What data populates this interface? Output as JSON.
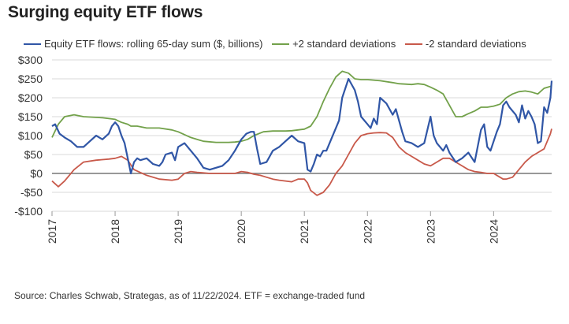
{
  "header": {
    "title": "Surging equity ETF flows"
  },
  "footer": {
    "source": "Source: Charles Schwab, Strategas, as of 11/22/2024. ETF = exchange-traded fund"
  },
  "colors": {
    "flows": "#3056a6",
    "upper": "#72a14a",
    "lower": "#c8594a",
    "zero": "#777777",
    "grid": "#d9d9d9"
  },
  "chart_data": {
    "type": "line",
    "title": "Surging equity ETF flows",
    "xlabel": "",
    "ylabel": "",
    "xlim": [
      2017.0,
      2024.92
    ],
    "ylim": [
      -100,
      300
    ],
    "y_ticks": [
      300,
      250,
      200,
      150,
      100,
      50,
      0,
      -50,
      -100
    ],
    "y_tick_labels": [
      "$300",
      "$250",
      "$200",
      "$150",
      "$100",
      "$50",
      "$0",
      "-$50",
      "-$100"
    ],
    "x_ticks": [
      2017,
      2018,
      2019,
      2020,
      2021,
      2022,
      2023,
      2024
    ],
    "x_tick_labels": [
      "2017",
      "2018",
      "2019",
      "2020",
      "2021",
      "2022",
      "2023",
      "2024"
    ],
    "grid": "horizontal",
    "legend": "top",
    "series": [
      {
        "name": "Equity ETF flows: rolling 65-day sum ($, billions)",
        "color": "#3056a6",
        "x": [
          2017.0,
          2017.05,
          2017.12,
          2017.2,
          2017.3,
          2017.4,
          2017.5,
          2017.6,
          2017.7,
          2017.8,
          2017.9,
          2017.95,
          2018.0,
          2018.05,
          2018.1,
          2018.15,
          2018.2,
          2018.25,
          2018.3,
          2018.35,
          2018.4,
          2018.5,
          2018.6,
          2018.7,
          2018.75,
          2018.8,
          2018.9,
          2018.95,
          2019.0,
          2019.1,
          2019.2,
          2019.3,
          2019.4,
          2019.5,
          2019.6,
          2019.7,
          2019.8,
          2019.9,
          2020.0,
          2020.08,
          2020.15,
          2020.2,
          2020.25,
          2020.3,
          2020.4,
          2020.5,
          2020.6,
          2020.7,
          2020.8,
          2020.9,
          2021.0,
          2021.05,
          2021.1,
          2021.15,
          2021.2,
          2021.25,
          2021.3,
          2021.35,
          2021.4,
          2021.5,
          2021.55,
          2021.6,
          2021.7,
          2021.8,
          2021.85,
          2021.9,
          2022.0,
          2022.05,
          2022.1,
          2022.15,
          2022.2,
          2022.3,
          2022.4,
          2022.45,
          2022.5,
          2022.55,
          2022.6,
          2022.7,
          2022.8,
          2022.9,
          2023.0,
          2023.05,
          2023.1,
          2023.2,
          2023.25,
          2023.3,
          2023.4,
          2023.5,
          2023.6,
          2023.7,
          2023.8,
          2023.85,
          2023.9,
          2023.95,
          2024.0,
          2024.05,
          2024.1,
          2024.15,
          2024.2,
          2024.25,
          2024.3,
          2024.35,
          2024.4,
          2024.45,
          2024.5,
          2024.55,
          2024.6,
          2024.65,
          2024.7,
          2024.75,
          2024.8,
          2024.85,
          2024.9,
          2024.92
        ],
        "y": [
          125,
          130,
          105,
          95,
          85,
          70,
          70,
          85,
          100,
          90,
          105,
          125,
          135,
          125,
          100,
          80,
          40,
          0,
          30,
          40,
          35,
          40,
          25,
          20,
          30,
          50,
          55,
          35,
          70,
          80,
          60,
          40,
          15,
          10,
          15,
          20,
          35,
          60,
          90,
          105,
          110,
          110,
          65,
          25,
          30,
          60,
          70,
          85,
          100,
          85,
          80,
          10,
          5,
          25,
          50,
          45,
          60,
          60,
          80,
          120,
          140,
          200,
          250,
          220,
          190,
          150,
          130,
          120,
          145,
          130,
          200,
          185,
          155,
          170,
          140,
          110,
          85,
          80,
          70,
          80,
          150,
          100,
          80,
          60,
          75,
          55,
          30,
          40,
          55,
          30,
          115,
          130,
          70,
          60,
          85,
          110,
          130,
          180,
          190,
          175,
          165,
          155,
          135,
          180,
          145,
          165,
          150,
          130,
          80,
          85,
          175,
          160,
          200,
          245
        ]
      },
      {
        "name": "+2 standard deviations",
        "color": "#72a14a",
        "x": [
          2017.0,
          2017.1,
          2017.2,
          2017.35,
          2017.5,
          2017.8,
          2018.0,
          2018.1,
          2018.2,
          2018.25,
          2018.35,
          2018.5,
          2018.7,
          2018.9,
          2019.0,
          2019.2,
          2019.4,
          2019.6,
          2019.8,
          2019.9,
          2020.0,
          2020.1,
          2020.2,
          2020.35,
          2020.5,
          2020.7,
          2020.8,
          2020.9,
          2021.0,
          2021.1,
          2021.2,
          2021.3,
          2021.4,
          2021.5,
          2021.6,
          2021.7,
          2021.8,
          2021.9,
          2022.0,
          2022.2,
          2022.4,
          2022.5,
          2022.6,
          2022.7,
          2022.8,
          2022.9,
          2023.0,
          2023.1,
          2023.2,
          2023.3,
          2023.4,
          2023.5,
          2023.6,
          2023.7,
          2023.8,
          2023.9,
          2024.0,
          2024.1,
          2024.2,
          2024.3,
          2024.4,
          2024.5,
          2024.6,
          2024.7,
          2024.8,
          2024.9,
          2024.92
        ],
        "y": [
          95,
          130,
          150,
          155,
          150,
          147,
          143,
          135,
          130,
          125,
          125,
          120,
          120,
          115,
          110,
          95,
          85,
          82,
          82,
          83,
          85,
          90,
          100,
          110,
          112,
          112,
          113,
          115,
          117,
          125,
          150,
          190,
          225,
          255,
          270,
          265,
          250,
          248,
          248,
          245,
          240,
          237,
          236,
          235,
          237,
          235,
          228,
          220,
          210,
          180,
          150,
          150,
          158,
          165,
          175,
          175,
          178,
          183,
          200,
          210,
          216,
          218,
          215,
          210,
          225,
          230,
          232
        ]
      },
      {
        "name": "-2 standard deviations",
        "color": "#c8594a",
        "x": [
          2017.0,
          2017.1,
          2017.2,
          2017.35,
          2017.5,
          2017.7,
          2017.9,
          2018.0,
          2018.1,
          2018.2,
          2018.3,
          2018.5,
          2018.7,
          2018.9,
          2019.0,
          2019.1,
          2019.2,
          2019.3,
          2019.5,
          2019.7,
          2019.9,
          2020.0,
          2020.1,
          2020.2,
          2020.3,
          2020.4,
          2020.5,
          2020.6,
          2020.7,
          2020.8,
          2020.9,
          2021.0,
          2021.05,
          2021.1,
          2021.2,
          2021.3,
          2021.4,
          2021.5,
          2021.6,
          2021.7,
          2021.8,
          2021.9,
          2022.0,
          2022.1,
          2022.2,
          2022.3,
          2022.4,
          2022.5,
          2022.6,
          2022.7,
          2022.8,
          2022.9,
          2023.0,
          2023.1,
          2023.2,
          2023.3,
          2023.4,
          2023.5,
          2023.6,
          2023.7,
          2023.8,
          2023.9,
          2024.0,
          2024.1,
          2024.15,
          2024.2,
          2024.3,
          2024.4,
          2024.5,
          2024.6,
          2024.7,
          2024.8,
          2024.9,
          2024.92
        ],
        "y": [
          -20,
          -35,
          -20,
          10,
          30,
          35,
          38,
          40,
          45,
          35,
          10,
          -5,
          -15,
          -18,
          -15,
          0,
          5,
          3,
          0,
          0,
          0,
          5,
          3,
          -2,
          -5,
          -10,
          -15,
          -18,
          -20,
          -22,
          -15,
          -15,
          -25,
          -45,
          -58,
          -50,
          -30,
          0,
          20,
          50,
          80,
          100,
          105,
          107,
          108,
          107,
          95,
          70,
          55,
          45,
          35,
          25,
          20,
          30,
          40,
          40,
          30,
          20,
          10,
          5,
          3,
          0,
          0,
          -10,
          -15,
          -15,
          -10,
          10,
          30,
          45,
          55,
          65,
          105,
          118
        ]
      }
    ]
  }
}
